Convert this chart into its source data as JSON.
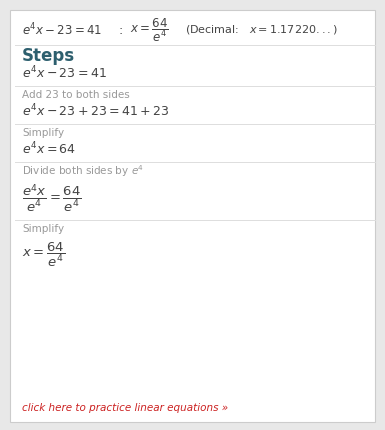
{
  "bg_color": "#e8e8e8",
  "card_color": "#ffffff",
  "title_color": "#2d5f6e",
  "step_label_color": "#999999",
  "math_color": "#444444",
  "link_color": "#cc2222",
  "divider_color": "#dddddd",
  "steps_title": "Steps",
  "link_text": "click here to practice linear equations »",
  "header_eq": "$e^{4}x - 23 = 41$",
  "header_colon": ":",
  "header_x_eq": "$x = \\dfrac{64}{e^{4}}$",
  "header_decimal": "(Decimal:   $x = 1.17220...$)",
  "step0_math": "$e^{4}x - 23 = 41$",
  "step1_label": "Add 23 to both sides",
  "step1_math": "$e^{4}x - 23 + 23 = 41 + 23$",
  "step2_label": "Simplify",
  "step2_math": "$e^{4}x = 64$",
  "step3_label": "Divide both sides by $e^{4}$",
  "step3_math": "$\\dfrac{e^{4}x}{e^{4}} = \\dfrac{64}{e^{4}}$",
  "step4_label": "Simplify",
  "step4_math": "$x = \\dfrac{64}{e^{4}}$"
}
